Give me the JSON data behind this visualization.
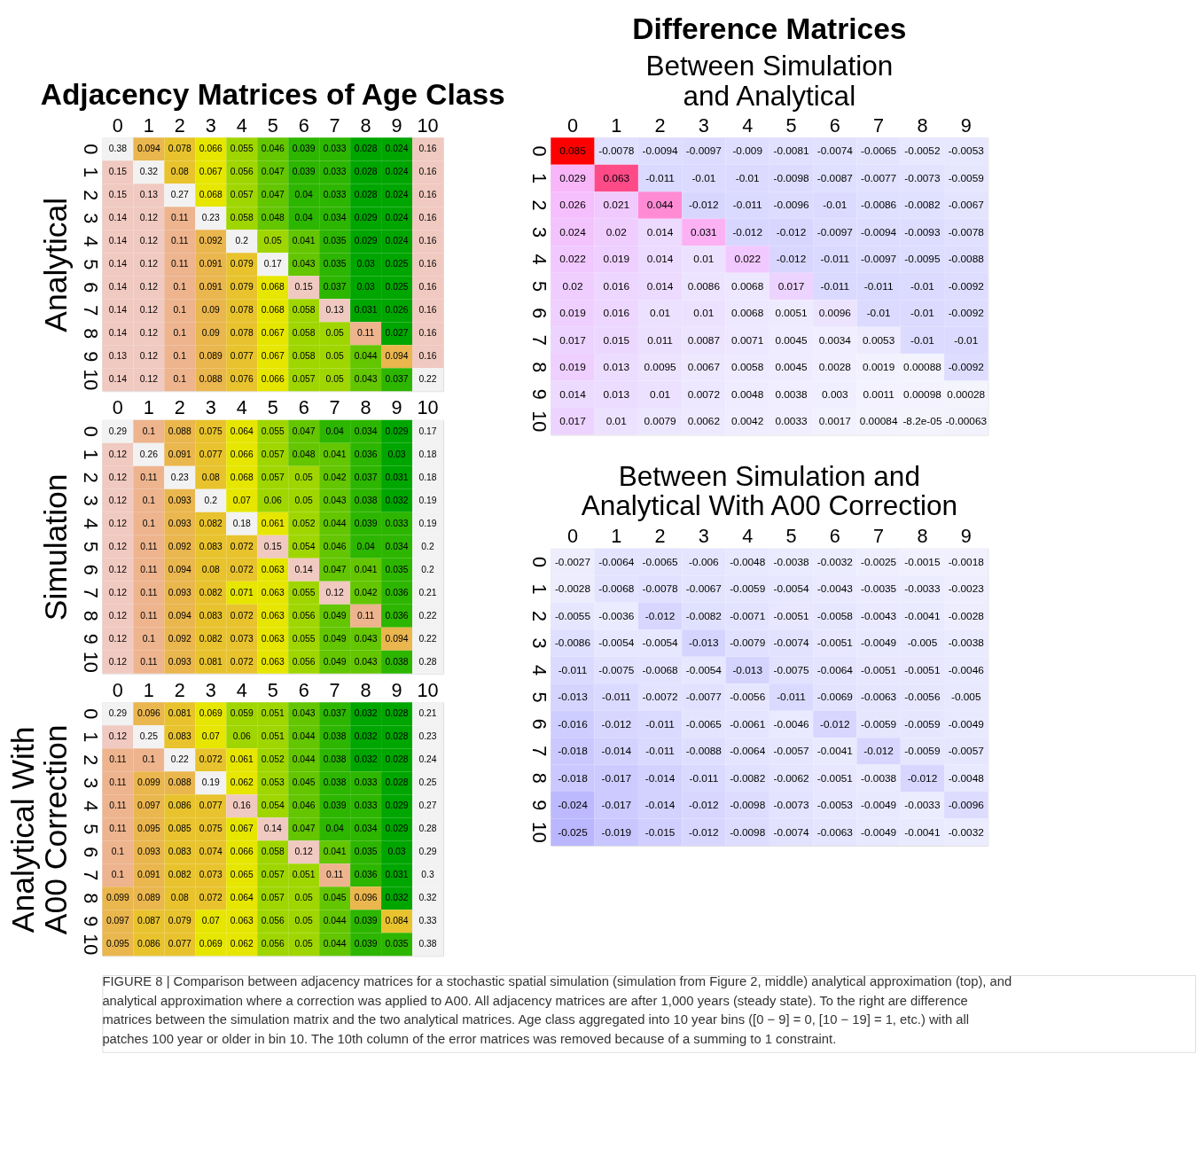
{
  "chart_data": [
    {
      "type": "heatmap",
      "title": "Adjacency Matrices of Age Class",
      "ylabel": "Analytical",
      "data_labels": true,
      "categories": [
        "0",
        "1",
        "2",
        "3",
        "4",
        "5",
        "6",
        "7",
        "8",
        "9",
        "10"
      ],
      "y_categories": [
        "0",
        "1",
        "2",
        "3",
        "4",
        "5",
        "6",
        "7",
        "8",
        "9",
        "10"
      ],
      "cells": [
        [
          0.38,
          0.094,
          0.078,
          0.066,
          0.055,
          0.046,
          0.039,
          0.033,
          0.028,
          0.024,
          0.16
        ],
        [
          0.15,
          0.32,
          0.08,
          0.067,
          0.056,
          0.047,
          0.039,
          0.033,
          0.028,
          0.024,
          0.16
        ],
        [
          0.15,
          0.13,
          0.27,
          0.068,
          0.057,
          0.047,
          0.04,
          0.033,
          0.028,
          0.024,
          0.16
        ],
        [
          0.14,
          0.12,
          0.11,
          0.23,
          0.058,
          0.048,
          0.04,
          0.034,
          0.029,
          0.024,
          0.16
        ],
        [
          0.14,
          0.12,
          0.11,
          0.092,
          0.2,
          0.05,
          0.041,
          0.035,
          0.029,
          0.024,
          0.16
        ],
        [
          0.14,
          0.12,
          0.11,
          0.091,
          0.079,
          0.17,
          0.043,
          0.035,
          0.03,
          0.025,
          0.16
        ],
        [
          0.14,
          0.12,
          0.1,
          0.091,
          0.079,
          0.068,
          0.15,
          0.037,
          0.03,
          0.025,
          0.16
        ],
        [
          0.14,
          0.12,
          0.1,
          0.09,
          0.078,
          0.068,
          0.058,
          0.13,
          0.031,
          0.026,
          0.16
        ],
        [
          0.14,
          0.12,
          0.1,
          0.09,
          0.078,
          0.067,
          0.058,
          0.05,
          0.11,
          0.027,
          0.16
        ],
        [
          0.13,
          0.12,
          0.1,
          0.089,
          0.077,
          0.067,
          0.058,
          0.05,
          0.044,
          0.094,
          0.16
        ],
        [
          0.14,
          0.12,
          0.1,
          0.088,
          0.076,
          0.066,
          0.057,
          0.05,
          0.043,
          0.037,
          0.22
        ]
      ]
    },
    {
      "type": "heatmap",
      "ylabel": "Simulation",
      "data_labels": true,
      "categories": [
        "0",
        "1",
        "2",
        "3",
        "4",
        "5",
        "6",
        "7",
        "8",
        "9",
        "10"
      ],
      "y_categories": [
        "0",
        "1",
        "2",
        "3",
        "4",
        "5",
        "6",
        "7",
        "8",
        "9",
        "10"
      ],
      "cells": [
        [
          0.29,
          0.1,
          0.088,
          0.075,
          0.064,
          0.055,
          0.047,
          0.04,
          0.034,
          0.029,
          0.17
        ],
        [
          0.12,
          0.26,
          0.091,
          0.077,
          0.066,
          0.057,
          0.048,
          0.041,
          0.036,
          0.03,
          0.18
        ],
        [
          0.12,
          0.11,
          0.23,
          0.08,
          0.068,
          0.057,
          0.05,
          0.042,
          0.037,
          0.031,
          0.18
        ],
        [
          0.12,
          0.1,
          0.093,
          0.2,
          0.07,
          0.06,
          0.05,
          0.043,
          0.038,
          0.032,
          0.19
        ],
        [
          0.12,
          0.1,
          0.093,
          0.082,
          0.18,
          0.061,
          0.052,
          0.044,
          0.039,
          0.033,
          0.19
        ],
        [
          0.12,
          0.11,
          0.092,
          0.083,
          0.072,
          0.15,
          0.054,
          0.046,
          0.04,
          0.034,
          0.2
        ],
        [
          0.12,
          0.11,
          0.094,
          0.08,
          0.072,
          0.063,
          0.14,
          0.047,
          0.041,
          0.035,
          0.2
        ],
        [
          0.12,
          0.11,
          0.093,
          0.082,
          0.071,
          0.063,
          0.055,
          0.12,
          0.042,
          0.036,
          0.21
        ],
        [
          0.12,
          0.11,
          0.094,
          0.083,
          0.072,
          0.063,
          0.056,
          0.049,
          0.11,
          0.036,
          0.22
        ],
        [
          0.12,
          0.1,
          0.092,
          0.082,
          0.073,
          0.063,
          0.055,
          0.049,
          0.043,
          0.094,
          0.22
        ],
        [
          0.12,
          0.11,
          0.093,
          0.081,
          0.072,
          0.063,
          0.056,
          0.049,
          0.043,
          0.038,
          0.28
        ]
      ]
    },
    {
      "type": "heatmap",
      "ylabel": "Analytical With A00 Correction",
      "data_labels": true,
      "categories": [
        "0",
        "1",
        "2",
        "3",
        "4",
        "5",
        "6",
        "7",
        "8",
        "9",
        "10"
      ],
      "y_categories": [
        "0",
        "1",
        "2",
        "3",
        "4",
        "5",
        "6",
        "7",
        "8",
        "9",
        "10"
      ],
      "cells": [
        [
          0.29,
          0.096,
          0.081,
          0.069,
          0.059,
          0.051,
          0.043,
          0.037,
          0.032,
          0.028,
          0.21
        ],
        [
          0.12,
          0.25,
          0.083,
          0.07,
          0.06,
          0.051,
          0.044,
          0.038,
          0.032,
          0.028,
          0.23
        ],
        [
          0.11,
          0.1,
          0.22,
          0.072,
          0.061,
          0.052,
          0.044,
          0.038,
          0.032,
          0.028,
          0.24
        ],
        [
          0.11,
          0.099,
          0.088,
          0.19,
          0.062,
          0.053,
          0.045,
          0.038,
          0.033,
          0.028,
          0.25
        ],
        [
          0.11,
          0.097,
          0.086,
          0.077,
          0.16,
          0.054,
          0.046,
          0.039,
          0.033,
          0.029,
          0.27
        ],
        [
          0.11,
          0.095,
          0.085,
          0.075,
          0.067,
          0.14,
          0.047,
          0.04,
          0.034,
          0.029,
          0.28
        ],
        [
          0.1,
          0.093,
          0.083,
          0.074,
          0.066,
          0.058,
          0.12,
          0.041,
          0.035,
          0.03,
          0.29
        ],
        [
          0.1,
          0.091,
          0.082,
          0.073,
          0.065,
          0.057,
          0.051,
          0.11,
          0.036,
          0.031,
          0.3
        ],
        [
          0.099,
          0.089,
          0.08,
          0.072,
          0.064,
          0.057,
          0.05,
          0.045,
          0.096,
          0.032,
          0.32
        ],
        [
          0.097,
          0.087,
          0.079,
          0.07,
          0.063,
          0.056,
          0.05,
          0.044,
          0.039,
          0.084,
          0.33
        ],
        [
          0.095,
          0.086,
          0.077,
          0.069,
          0.062,
          0.056,
          0.05,
          0.044,
          0.039,
          0.035,
          0.38
        ]
      ]
    },
    {
      "type": "heatmap",
      "title": "Difference Matrices",
      "subtitle": "Between Simulation and Analytical",
      "data_labels": true,
      "categories": [
        "0",
        "1",
        "2",
        "3",
        "4",
        "5",
        "6",
        "7",
        "8",
        "9"
      ],
      "y_categories": [
        "0",
        "1",
        "2",
        "3",
        "4",
        "5",
        "6",
        "7",
        "8",
        "9",
        "10"
      ],
      "cells": [
        [
          0.085,
          -0.0078,
          -0.0094,
          -0.0097,
          -0.009,
          -0.0081,
          -0.0074,
          -0.0065,
          -0.0052,
          -0.0053
        ],
        [
          0.029,
          0.063,
          -0.011,
          -0.01,
          -0.01,
          -0.0098,
          -0.0087,
          -0.0077,
          -0.0073,
          -0.0059
        ],
        [
          0.026,
          0.021,
          0.044,
          -0.012,
          -0.011,
          -0.0096,
          -0.01,
          -0.0086,
          -0.0082,
          -0.0067
        ],
        [
          0.024,
          0.02,
          0.014,
          0.031,
          -0.012,
          -0.012,
          -0.0097,
          -0.0094,
          -0.0093,
          -0.0078
        ],
        [
          0.022,
          0.019,
          0.014,
          0.01,
          0.022,
          -0.012,
          -0.011,
          -0.0097,
          -0.0095,
          -0.0088
        ],
        [
          0.02,
          0.016,
          0.014,
          0.0086,
          0.0068,
          0.017,
          -0.011,
          -0.011,
          -0.01,
          -0.0092
        ],
        [
          0.019,
          0.016,
          0.01,
          0.01,
          0.0068,
          0.0051,
          0.0096,
          -0.01,
          -0.01,
          -0.0092
        ],
        [
          0.017,
          0.015,
          0.011,
          0.0087,
          0.0071,
          0.0045,
          0.0034,
          0.0053,
          -0.01,
          -0.01
        ],
        [
          0.019,
          0.013,
          0.0095,
          0.0067,
          0.0058,
          0.0045,
          0.0028,
          0.0019,
          0.00088,
          -0.0092
        ],
        [
          0.014,
          0.013,
          0.01,
          0.0072,
          0.0048,
          0.0038,
          0.003,
          0.0011,
          0.00098,
          0.00028
        ],
        [
          0.017,
          0.01,
          0.0079,
          0.0062,
          0.0042,
          0.0033,
          0.0017,
          0.00084,
          -8.2e-05,
          -0.00063
        ]
      ]
    },
    {
      "type": "heatmap",
      "subtitle": "Between Simulation and Analytical With A00 Correction",
      "data_labels": true,
      "categories": [
        "0",
        "1",
        "2",
        "3",
        "4",
        "5",
        "6",
        "7",
        "8",
        "9"
      ],
      "y_categories": [
        "0",
        "1",
        "2",
        "3",
        "4",
        "5",
        "6",
        "7",
        "8",
        "9",
        "10"
      ],
      "cells": [
        [
          -0.0027,
          -0.0064,
          -0.0065,
          -0.006,
          -0.0048,
          -0.0038,
          -0.0032,
          -0.0025,
          -0.0015,
          -0.0018
        ],
        [
          -0.0028,
          -0.0068,
          -0.0078,
          -0.0067,
          -0.0059,
          -0.0054,
          -0.0043,
          -0.0035,
          -0.0033,
          -0.0023
        ],
        [
          -0.0055,
          -0.0036,
          -0.012,
          -0.0082,
          -0.0071,
          -0.0051,
          -0.0058,
          -0.0043,
          -0.0041,
          -0.0028
        ],
        [
          -0.0086,
          -0.0054,
          -0.0054,
          -0.013,
          -0.0079,
          -0.0074,
          -0.0051,
          -0.0049,
          -0.005,
          -0.0038
        ],
        [
          -0.011,
          -0.0075,
          -0.0068,
          -0.0054,
          -0.013,
          -0.0075,
          -0.0064,
          -0.0051,
          -0.0051,
          -0.0046
        ],
        [
          -0.013,
          -0.011,
          -0.0072,
          -0.0077,
          -0.0056,
          -0.011,
          -0.0069,
          -0.0063,
          -0.0056,
          -0.005
        ],
        [
          -0.016,
          -0.012,
          -0.011,
          -0.0065,
          -0.0061,
          -0.0046,
          -0.012,
          -0.0059,
          -0.0059,
          -0.0049
        ],
        [
          -0.018,
          -0.014,
          -0.011,
          -0.0088,
          -0.0064,
          -0.0057,
          -0.0041,
          -0.012,
          -0.0059,
          -0.0057
        ],
        [
          -0.018,
          -0.017,
          -0.014,
          -0.011,
          -0.0082,
          -0.0062,
          -0.0051,
          -0.0038,
          -0.012,
          -0.0048
        ],
        [
          -0.024,
          -0.017,
          -0.014,
          -0.012,
          -0.0098,
          -0.0073,
          -0.0053,
          -0.0049,
          -0.0033,
          -0.0096
        ],
        [
          -0.025,
          -0.019,
          -0.015,
          -0.012,
          -0.0098,
          -0.0074,
          -0.0063,
          -0.0049,
          -0.0041,
          -0.0032
        ]
      ],
      "annotations": [
        "FIGURE 8 | Comparison between adjacency matrices for a stochastic spatial simulation (simulation from Figure 2, middle) analytical approximation (top), and analytical approximation where a correction was applied to A00. All adjacency matrices are after 1,000 years (steady state). To the right are difference matrices between the simulation matrix and the two analytical matrices. Age class aggregated into 10 year bins ([0 − 9] = 0, [10 − 19] = 1, etc.) with all patches 100 year or older in bin 10. The 10th column of the error matrices was removed because of a summing to 1 constraint."
      ]
    }
  ]
}
